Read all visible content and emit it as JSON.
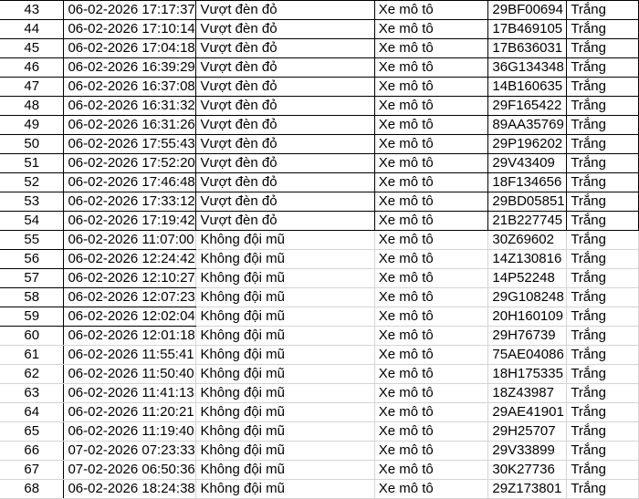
{
  "rows": [
    {
      "no": "43",
      "time": "06-02-2026 17:17:37",
      "violation": "Vượt đèn đỏ",
      "vehicle": "Xe mô tô",
      "plate": "29BF00694",
      "color": "Trắng"
    },
    {
      "no": "44",
      "time": "06-02-2026 17:10:14",
      "violation": "Vượt đèn đỏ",
      "vehicle": "Xe mô tô",
      "plate": "17B469105",
      "color": "Trắng"
    },
    {
      "no": "45",
      "time": "06-02-2026 17:04:18",
      "violation": "Vượt đèn đỏ",
      "vehicle": "Xe mô tô",
      "plate": "17B636031",
      "color": "Trắng"
    },
    {
      "no": "46",
      "time": "06-02-2026 16:39:29",
      "violation": "Vượt đèn đỏ",
      "vehicle": "Xe mô tô",
      "plate": "36G134348",
      "color": "Trắng"
    },
    {
      "no": "47",
      "time": "06-02-2026 16:37:08",
      "violation": "Vượt đèn đỏ",
      "vehicle": "Xe mô tô",
      "plate": "14B160635",
      "color": "Trắng"
    },
    {
      "no": "48",
      "time": "06-02-2026 16:31:32",
      "violation": "Vượt đèn đỏ",
      "vehicle": "Xe mô tô",
      "plate": "29F165422",
      "color": "Trắng"
    },
    {
      "no": "49",
      "time": "06-02-2026 16:31:26",
      "violation": "Vượt đèn đỏ",
      "vehicle": "Xe mô tô",
      "plate": "89AA35769",
      "color": "Trắng"
    },
    {
      "no": "50",
      "time": "06-02-2026 17:55:43",
      "violation": "Vượt đèn đỏ",
      "vehicle": "Xe mô tô",
      "plate": "29P196202",
      "color": "Trắng"
    },
    {
      "no": "51",
      "time": "06-02-2026 17:52:20",
      "violation": "Vượt đèn đỏ",
      "vehicle": "Xe mô tô",
      "plate": "29V43409",
      "color": "Trắng"
    },
    {
      "no": "52",
      "time": "06-02-2026 17:46:48",
      "violation": "Vượt đèn đỏ",
      "vehicle": "Xe mô tô",
      "plate": "18F134656",
      "color": "Trắng"
    },
    {
      "no": "53",
      "time": "06-02-2026 17:33:12",
      "violation": "Vượt đèn đỏ",
      "vehicle": "Xe mô tô",
      "plate": "29BD05851",
      "color": "Trắng"
    },
    {
      "no": "54",
      "time": "06-02-2026 17:19:42",
      "violation": "Vượt đèn đỏ",
      "vehicle": "Xe mô tô",
      "plate": "21B227745",
      "color": "Trắng"
    },
    {
      "no": "55",
      "time": "06-02-2026 11:07:00",
      "violation": "Không đội mũ",
      "vehicle": "Xe mô tô",
      "plate": "30Z69602",
      "color": "Trắng"
    },
    {
      "no": "56",
      "time": "06-02-2026 12:24:42",
      "violation": "Không đội mũ",
      "vehicle": "Xe mô tô",
      "plate": "14Z130816",
      "color": "Trắng"
    },
    {
      "no": "57",
      "time": "06-02-2026 12:10:27",
      "violation": "Không đội mũ",
      "vehicle": "Xe mô tô",
      "plate": "14P52248",
      "color": "Trắng"
    },
    {
      "no": "58",
      "time": "06-02-2026 12:07:23",
      "violation": "Không đội mũ",
      "vehicle": "Xe mô tô",
      "plate": "29G108248",
      "color": "Trắng"
    },
    {
      "no": "59",
      "time": "06-02-2026 12:02:04",
      "violation": "Không đội mũ",
      "vehicle": "Xe mô tô",
      "plate": "20H160109",
      "color": "Trắng"
    },
    {
      "no": "60",
      "time": "06-02-2026 12:01:18",
      "violation": "Không đội mũ",
      "vehicle": "Xe mô tô",
      "plate": "29H76739",
      "color": "Trắng"
    },
    {
      "no": "61",
      "time": "06-02-2026 11:55:41",
      "violation": "Không đội mũ",
      "vehicle": "Xe mô tô",
      "plate": "75AE04086",
      "color": "Trắng"
    },
    {
      "no": "62",
      "time": "06-02-2026 11:50:40",
      "violation": "Không đội mũ",
      "vehicle": "Xe mô tô",
      "plate": "18H175335",
      "color": "Trắng"
    },
    {
      "no": "63",
      "time": "06-02-2026 11:41:13",
      "violation": "Không đội mũ",
      "vehicle": "Xe mô tô",
      "plate": "18Z43987",
      "color": "Trắng"
    },
    {
      "no": "64",
      "time": "06-02-2026 11:20:21",
      "violation": "Không đội mũ",
      "vehicle": "Xe mô tô",
      "plate": "29AE41901",
      "color": "Trắng"
    },
    {
      "no": "65",
      "time": "06-02-2026 11:19:40",
      "violation": "Không đội mũ",
      "vehicle": "Xe mô tô",
      "plate": "29H25707",
      "color": "Trắng"
    },
    {
      "no": "66",
      "time": "07-02-2026 07:23:33",
      "violation": "Không đội mũ",
      "vehicle": "Xe mô tô",
      "plate": "29V33899",
      "color": "Trắng"
    },
    {
      "no": "67",
      "time": "07-02-2026 06:50:36",
      "violation": "Không đội mũ",
      "vehicle": "Xe mô tô",
      "plate": "30K27736",
      "color": "Trắng"
    },
    {
      "no": "68",
      "time": "06-02-2026 18:24:38",
      "violation": "Không đội mũ",
      "vehicle": "Xe mô tô",
      "plate": "29Z173801",
      "color": "Trắng"
    }
  ]
}
